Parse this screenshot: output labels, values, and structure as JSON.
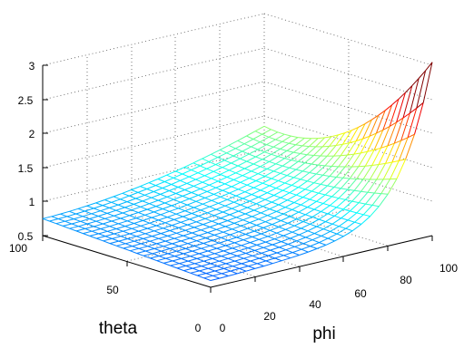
{
  "chart_data": {
    "type": "surface-mesh",
    "xlabel": "phi",
    "ylabel": "theta",
    "zlabel": "",
    "xlim": [
      0,
      100
    ],
    "ylim": [
      0,
      100
    ],
    "zlim": [
      0.5,
      3
    ],
    "x_ticks": [
      "0",
      "20",
      "40",
      "60",
      "80",
      "100"
    ],
    "y_ticks": [
      "0",
      "50",
      "100"
    ],
    "z_ticks": [
      "0.5",
      "1",
      "1.5",
      "2",
      "2.5",
      "3"
    ],
    "grid": true,
    "colormap": "jet",
    "surface_samples": [
      {
        "phi": 0,
        "theta": 0,
        "z": 0.6
      },
      {
        "phi": 0,
        "theta": 100,
        "z": 0.75
      },
      {
        "phi": 50,
        "theta": 50,
        "z": 0.95
      },
      {
        "phi": 100,
        "theta": 100,
        "z": 1.6
      },
      {
        "phi": 100,
        "theta": 0,
        "z": 2.5
      },
      {
        "phi": 80,
        "theta": 20,
        "z": 1.5
      }
    ]
  }
}
